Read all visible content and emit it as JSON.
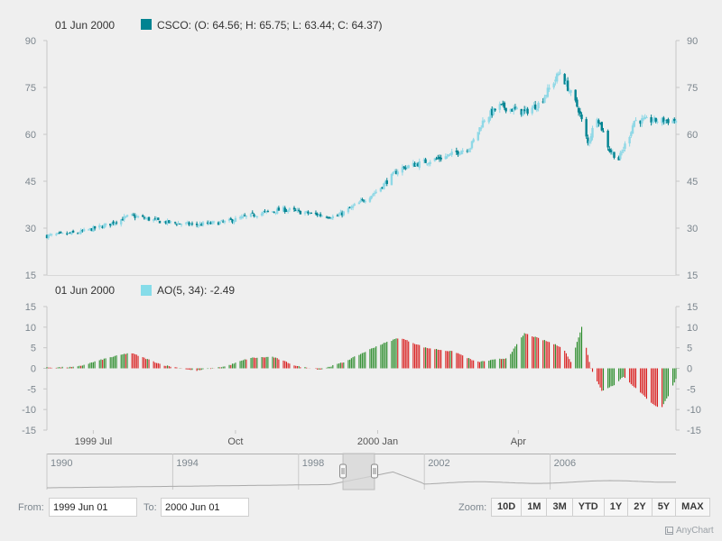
{
  "chart_data": [
    {
      "type": "candlestick",
      "series_name": "CSCO",
      "legend_date": "01 Jun 2000",
      "legend_values": "(O: 64.56; H: 65.75; L: 63.44; C: 64.37)",
      "ylim": [
        15,
        90
      ],
      "y_ticks": [
        90,
        75,
        60,
        45,
        30,
        15
      ],
      "up_color": "#8fd8e6",
      "down_color": "#008391",
      "x_range": [
        "1999-06-01",
        "2000-06-01"
      ],
      "close_anchors": [
        [
          "1999-06-01",
          27.5
        ],
        [
          "1999-06-21",
          28.5
        ],
        [
          "1999-07-10",
          31.0
        ],
        [
          "1999-07-25",
          34.0
        ],
        [
          "1999-08-15",
          32.0
        ],
        [
          "1999-09-05",
          31.0
        ],
        [
          "1999-09-25",
          32.0
        ],
        [
          "1999-10-15",
          34.5
        ],
        [
          "1999-11-01",
          36.0
        ],
        [
          "1999-11-20",
          34.5
        ],
        [
          "1999-12-05",
          33.5
        ],
        [
          "1999-12-20",
          38.0
        ],
        [
          "2000-01-01",
          42.0
        ],
        [
          "2000-01-15",
          49.0
        ],
        [
          "2000-01-30",
          51.0
        ],
        [
          "2000-02-15",
          53.0
        ],
        [
          "2000-03-01",
          56.0
        ],
        [
          "2000-03-10",
          65.0
        ],
        [
          "2000-03-20",
          69.0
        ],
        [
          "2000-04-05",
          67.0
        ],
        [
          "2000-04-15",
          70.0
        ],
        [
          "2000-04-28",
          80.0
        ],
        [
          "2000-05-03",
          75.0
        ],
        [
          "2000-05-10",
          68.0
        ],
        [
          "2000-05-16",
          57.0
        ],
        [
          "2000-05-22",
          66.0
        ],
        [
          "2000-05-30",
          55.0
        ],
        [
          "2000-06-05",
          52.0
        ],
        [
          "2000-06-12",
          60.0
        ],
        [
          "2000-06-15",
          64.4
        ]
      ]
    },
    {
      "type": "bar",
      "series_name": "AO(5, 34)",
      "legend_date": "01 Jun 2000",
      "legend_value": "-2.49",
      "ylim": [
        -15,
        15
      ],
      "y_ticks": [
        15,
        10,
        5,
        0,
        -5,
        -10,
        -15
      ],
      "rising_color": "#2b8c2b",
      "falling_color": "#d91c1c",
      "legend_color": "#86dce9",
      "value_anchors": [
        [
          "1999-06-01",
          0.2
        ],
        [
          "1999-06-20",
          0.3
        ],
        [
          "1999-07-10",
          2.5
        ],
        [
          "1999-07-25",
          3.8
        ],
        [
          "1999-08-15",
          0.8
        ],
        [
          "1999-09-05",
          -0.6
        ],
        [
          "1999-09-25",
          0.5
        ],
        [
          "1999-10-10",
          2.5
        ],
        [
          "1999-10-25",
          2.8
        ],
        [
          "1999-11-10",
          0.5
        ],
        [
          "1999-11-25",
          -0.3
        ],
        [
          "1999-12-10",
          1.5
        ],
        [
          "2000-01-01",
          5.5
        ],
        [
          "2000-01-15",
          7.5
        ],
        [
          "2000-02-01",
          5.0
        ],
        [
          "2000-02-20",
          4.0
        ],
        [
          "2000-03-05",
          1.5
        ],
        [
          "2000-03-25",
          2.5
        ],
        [
          "2000-04-05",
          8.5
        ],
        [
          "2000-04-20",
          6.5
        ],
        [
          "2000-04-30",
          5.0
        ],
        [
          "2000-05-05",
          1.5
        ],
        [
          "2000-05-12",
          10.0
        ],
        [
          "2000-05-18",
          0.0
        ],
        [
          "2000-05-25",
          -5.5
        ],
        [
          "2000-06-02",
          -4.0
        ],
        [
          "2000-06-08",
          -2.0
        ],
        [
          "2000-06-15",
          -4.5
        ],
        [
          "2000-06-25",
          -8.0
        ],
        [
          "2000-07-02",
          -10.0
        ],
        [
          "2000-07-08",
          -6.0
        ],
        [
          "2000-07-12",
          -2.5
        ]
      ]
    }
  ],
  "x_axis": {
    "labels": [
      {
        "text": "1999 Jul",
        "date": "1999-07-01"
      },
      {
        "text": "Oct",
        "date": "1999-10-01"
      },
      {
        "text": "2000 Jan",
        "date": "2000-01-01"
      },
      {
        "text": "Apr",
        "date": "2000-04-01"
      }
    ]
  },
  "scroller": {
    "year_labels": [
      "1990",
      "1994",
      "1998",
      "2002",
      "2006"
    ],
    "selection": [
      "1999-06-01",
      "2000-06-01"
    ]
  },
  "range_selector": {
    "from_label": "From:",
    "from_value": "1999 Jun 01",
    "to_label": "To:",
    "to_value": "2000 Jun 01",
    "zoom_label": "Zoom:",
    "zoom_buttons": [
      "10D",
      "1M",
      "3M",
      "YTD",
      "1Y",
      "2Y",
      "5Y",
      "MAX"
    ]
  },
  "credits": "AnyChart"
}
